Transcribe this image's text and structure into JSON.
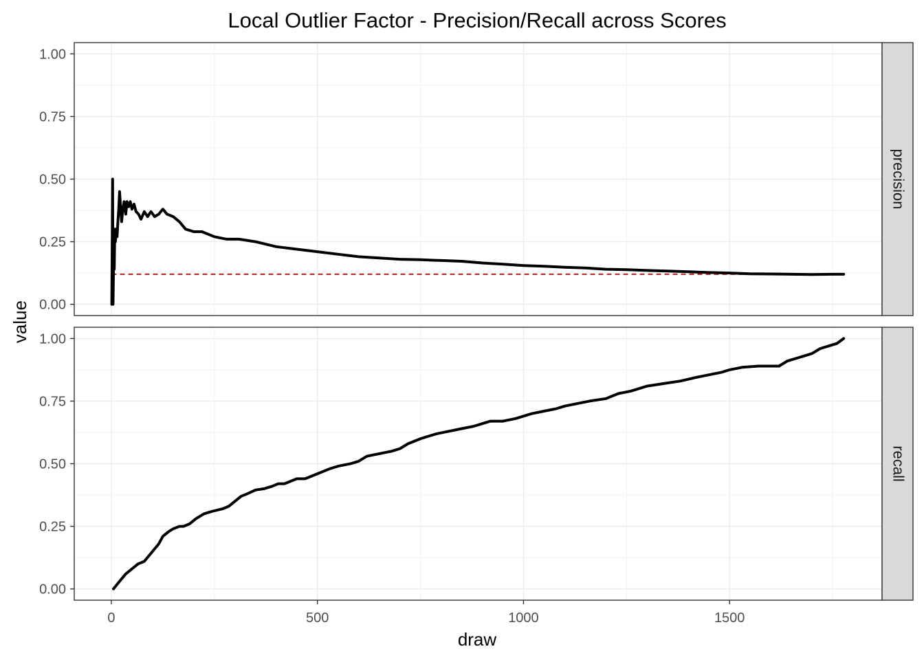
{
  "chart_data": {
    "type": "line",
    "title": "Local Outlier Factor - Precision/Recall across Scores",
    "xlabel": "draw",
    "ylabel": "value",
    "xlim": [
      -90,
      1870
    ],
    "x_ticks": [
      0,
      500,
      1000,
      1500
    ],
    "x_tick_labels": [
      "0",
      "500",
      "1000",
      "1500"
    ],
    "ylim": [
      -0.045,
      1.045
    ],
    "y_ticks": [
      0,
      0.25,
      0.5,
      0.75,
      1
    ],
    "y_tick_labels": [
      "0.00",
      "0.25",
      "0.50",
      "0.75",
      "1.00"
    ],
    "grid": true,
    "line_color": "#000000",
    "reference_line_color": "#b22222",
    "panels": [
      {
        "strip_label": "precision",
        "series": [
          {
            "x": [
              1,
              2,
              3,
              4,
              5,
              6,
              7,
              8,
              9,
              10,
              12,
              14,
              16,
              18,
              20,
              22,
              25,
              28,
              31,
              35,
              38,
              42,
              46,
              50,
              55,
              60,
              66,
              72,
              80,
              88,
              96,
              105,
              115,
              125,
              135,
              150,
              165,
              180,
              200,
              220,
              250,
              280,
              310,
              350,
              400,
              450,
              500,
              550,
              600,
              650,
              700,
              750,
              800,
              850,
              900,
              950,
              1000,
              1050,
              1100,
              1150,
              1200,
              1250,
              1300,
              1350,
              1400,
              1450,
              1500,
              1550,
              1600,
              1650,
              1700,
              1750,
              1777
            ],
            "values": [
              0.0,
              0.25,
              0.5,
              0.0,
              0.12,
              0.22,
              0.14,
              0.27,
              0.3,
              0.25,
              0.3,
              0.27,
              0.33,
              0.38,
              0.45,
              0.4,
              0.33,
              0.38,
              0.41,
              0.36,
              0.41,
              0.39,
              0.41,
              0.38,
              0.4,
              0.37,
              0.36,
              0.34,
              0.37,
              0.35,
              0.37,
              0.35,
              0.36,
              0.38,
              0.36,
              0.35,
              0.33,
              0.3,
              0.29,
              0.29,
              0.27,
              0.26,
              0.26,
              0.25,
              0.23,
              0.22,
              0.21,
              0.2,
              0.19,
              0.185,
              0.18,
              0.178,
              0.175,
              0.172,
              0.165,
              0.16,
              0.155,
              0.152,
              0.148,
              0.145,
              0.14,
              0.138,
              0.135,
              0.133,
              0.13,
              0.127,
              0.125,
              0.122,
              0.121,
              0.12,
              0.119,
              0.12,
              0.12
            ]
          }
        ],
        "reference_line": {
          "y": 0.12,
          "x_start": 1,
          "x_end": 1777,
          "style": "dashed"
        }
      },
      {
        "strip_label": "recall",
        "series": [
          {
            "x": [
              5,
              15,
              25,
              35,
              50,
              65,
              80,
              100,
              115,
              125,
              140,
              150,
              165,
              175,
              190,
              205,
              225,
              245,
              270,
              285,
              300,
              315,
              330,
              350,
              370,
              390,
              405,
              420,
              450,
              470,
              500,
              530,
              550,
              580,
              600,
              620,
              650,
              680,
              700,
              720,
              750,
              770,
              790,
              820,
              850,
              880,
              900,
              920,
              950,
              980,
              1000,
              1020,
              1050,
              1080,
              1100,
              1130,
              1160,
              1200,
              1230,
              1260,
              1300,
              1340,
              1380,
              1420,
              1450,
              1480,
              1500,
              1530,
              1570,
              1600,
              1620,
              1640,
              1660,
              1680,
              1700,
              1720,
              1740,
              1760,
              1777
            ],
            "values": [
              0.0,
              0.02,
              0.04,
              0.06,
              0.08,
              0.1,
              0.11,
              0.15,
              0.18,
              0.21,
              0.23,
              0.24,
              0.25,
              0.25,
              0.26,
              0.28,
              0.3,
              0.31,
              0.32,
              0.33,
              0.35,
              0.37,
              0.38,
              0.395,
              0.4,
              0.41,
              0.42,
              0.42,
              0.44,
              0.44,
              0.46,
              0.48,
              0.49,
              0.5,
              0.51,
              0.53,
              0.54,
              0.55,
              0.56,
              0.58,
              0.6,
              0.61,
              0.62,
              0.63,
              0.64,
              0.65,
              0.66,
              0.67,
              0.67,
              0.68,
              0.69,
              0.7,
              0.71,
              0.72,
              0.73,
              0.74,
              0.75,
              0.76,
              0.78,
              0.79,
              0.81,
              0.82,
              0.83,
              0.845,
              0.855,
              0.865,
              0.875,
              0.885,
              0.89,
              0.89,
              0.89,
              0.91,
              0.92,
              0.93,
              0.94,
              0.96,
              0.97,
              0.98,
              1.0
            ]
          }
        ]
      }
    ]
  }
}
